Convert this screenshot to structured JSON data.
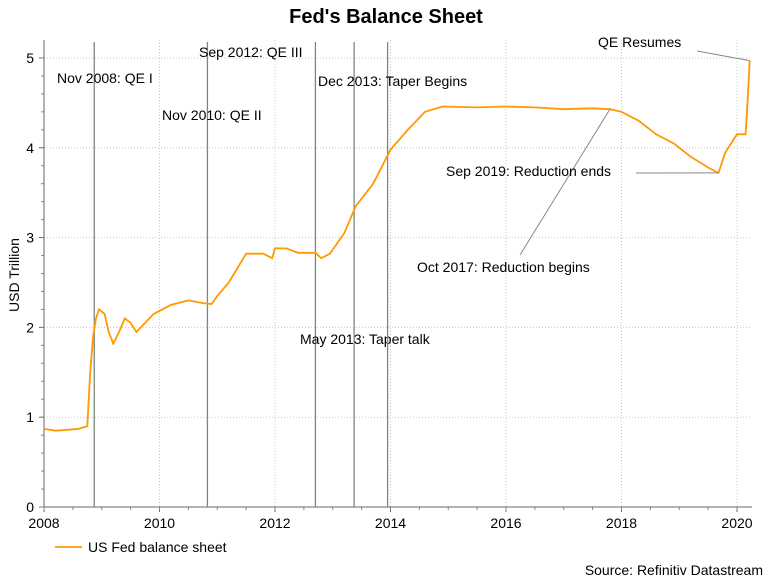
{
  "chart_data": {
    "type": "line",
    "title": "Fed's Balance Sheet",
    "ylabel": "USD Trillion",
    "xlabel": "",
    "xlim": [
      2008,
      2020.26
    ],
    "ylim": [
      0,
      5.2
    ],
    "xticks": [
      2008,
      2010,
      2012,
      2014,
      2016,
      2018,
      2020
    ],
    "yticks": [
      0,
      1,
      2,
      3,
      4,
      5
    ],
    "grid": true,
    "legend_position": "bottom-left",
    "source": "Source: Refinitiv Datastream",
    "series": [
      {
        "name": "US Fed balance sheet",
        "color": "#ff9900",
        "x": [
          2008.0,
          2008.2,
          2008.4,
          2008.6,
          2008.75,
          2008.8,
          2008.85,
          2008.9,
          2008.95,
          2009.05,
          2009.12,
          2009.2,
          2009.3,
          2009.4,
          2009.5,
          2009.6,
          2009.75,
          2009.9,
          2010.2,
          2010.5,
          2010.75,
          2010.9,
          2011.0,
          2011.2,
          2011.5,
          2011.8,
          2011.95,
          2012.0,
          2012.2,
          2012.4,
          2012.7,
          2012.8,
          2012.95,
          2013.2,
          2013.4,
          2013.7,
          2014.0,
          2014.3,
          2014.6,
          2014.9,
          2015.5,
          2016.0,
          2016.5,
          2017.0,
          2017.5,
          2017.8,
          2018.0,
          2018.3,
          2018.6,
          2018.9,
          2019.2,
          2019.5,
          2019.68,
          2019.8,
          2019.9,
          2020.0,
          2020.15,
          2020.19,
          2020.22
        ],
        "values": [
          0.87,
          0.85,
          0.86,
          0.87,
          0.9,
          1.5,
          1.9,
          2.1,
          2.2,
          2.15,
          1.95,
          1.82,
          1.95,
          2.1,
          2.05,
          1.95,
          2.05,
          2.15,
          2.25,
          2.3,
          2.27,
          2.26,
          2.35,
          2.5,
          2.82,
          2.82,
          2.77,
          2.88,
          2.88,
          2.83,
          2.83,
          2.77,
          2.82,
          3.05,
          3.35,
          3.6,
          3.98,
          4.2,
          4.4,
          4.46,
          4.45,
          4.46,
          4.45,
          4.43,
          4.44,
          4.43,
          4.4,
          4.3,
          4.15,
          4.05,
          3.9,
          3.78,
          3.72,
          3.95,
          4.05,
          4.15,
          4.15,
          4.6,
          4.97
        ]
      }
    ],
    "event_lines": [
      {
        "x": 2008.87,
        "label": "Nov 2008: QE I"
      },
      {
        "x": 2010.83,
        "label": "Nov 2010: QE II"
      },
      {
        "x": 2012.7,
        "label": "Sep 2012: QE III"
      },
      {
        "x": 2013.37,
        "label": "May 2013: Taper talk"
      },
      {
        "x": 2013.95,
        "label": "Dec 2013: Taper Begins"
      }
    ],
    "annotations": [
      {
        "label": "Oct 2017: Reduction begins",
        "x": 2017.8,
        "y": 4.43
      },
      {
        "label": "Sep 2019: Reduction ends",
        "x": 2019.68,
        "y": 3.72
      },
      {
        "label": "QE Resumes",
        "x": 2020.22,
        "y": 4.97
      }
    ]
  }
}
